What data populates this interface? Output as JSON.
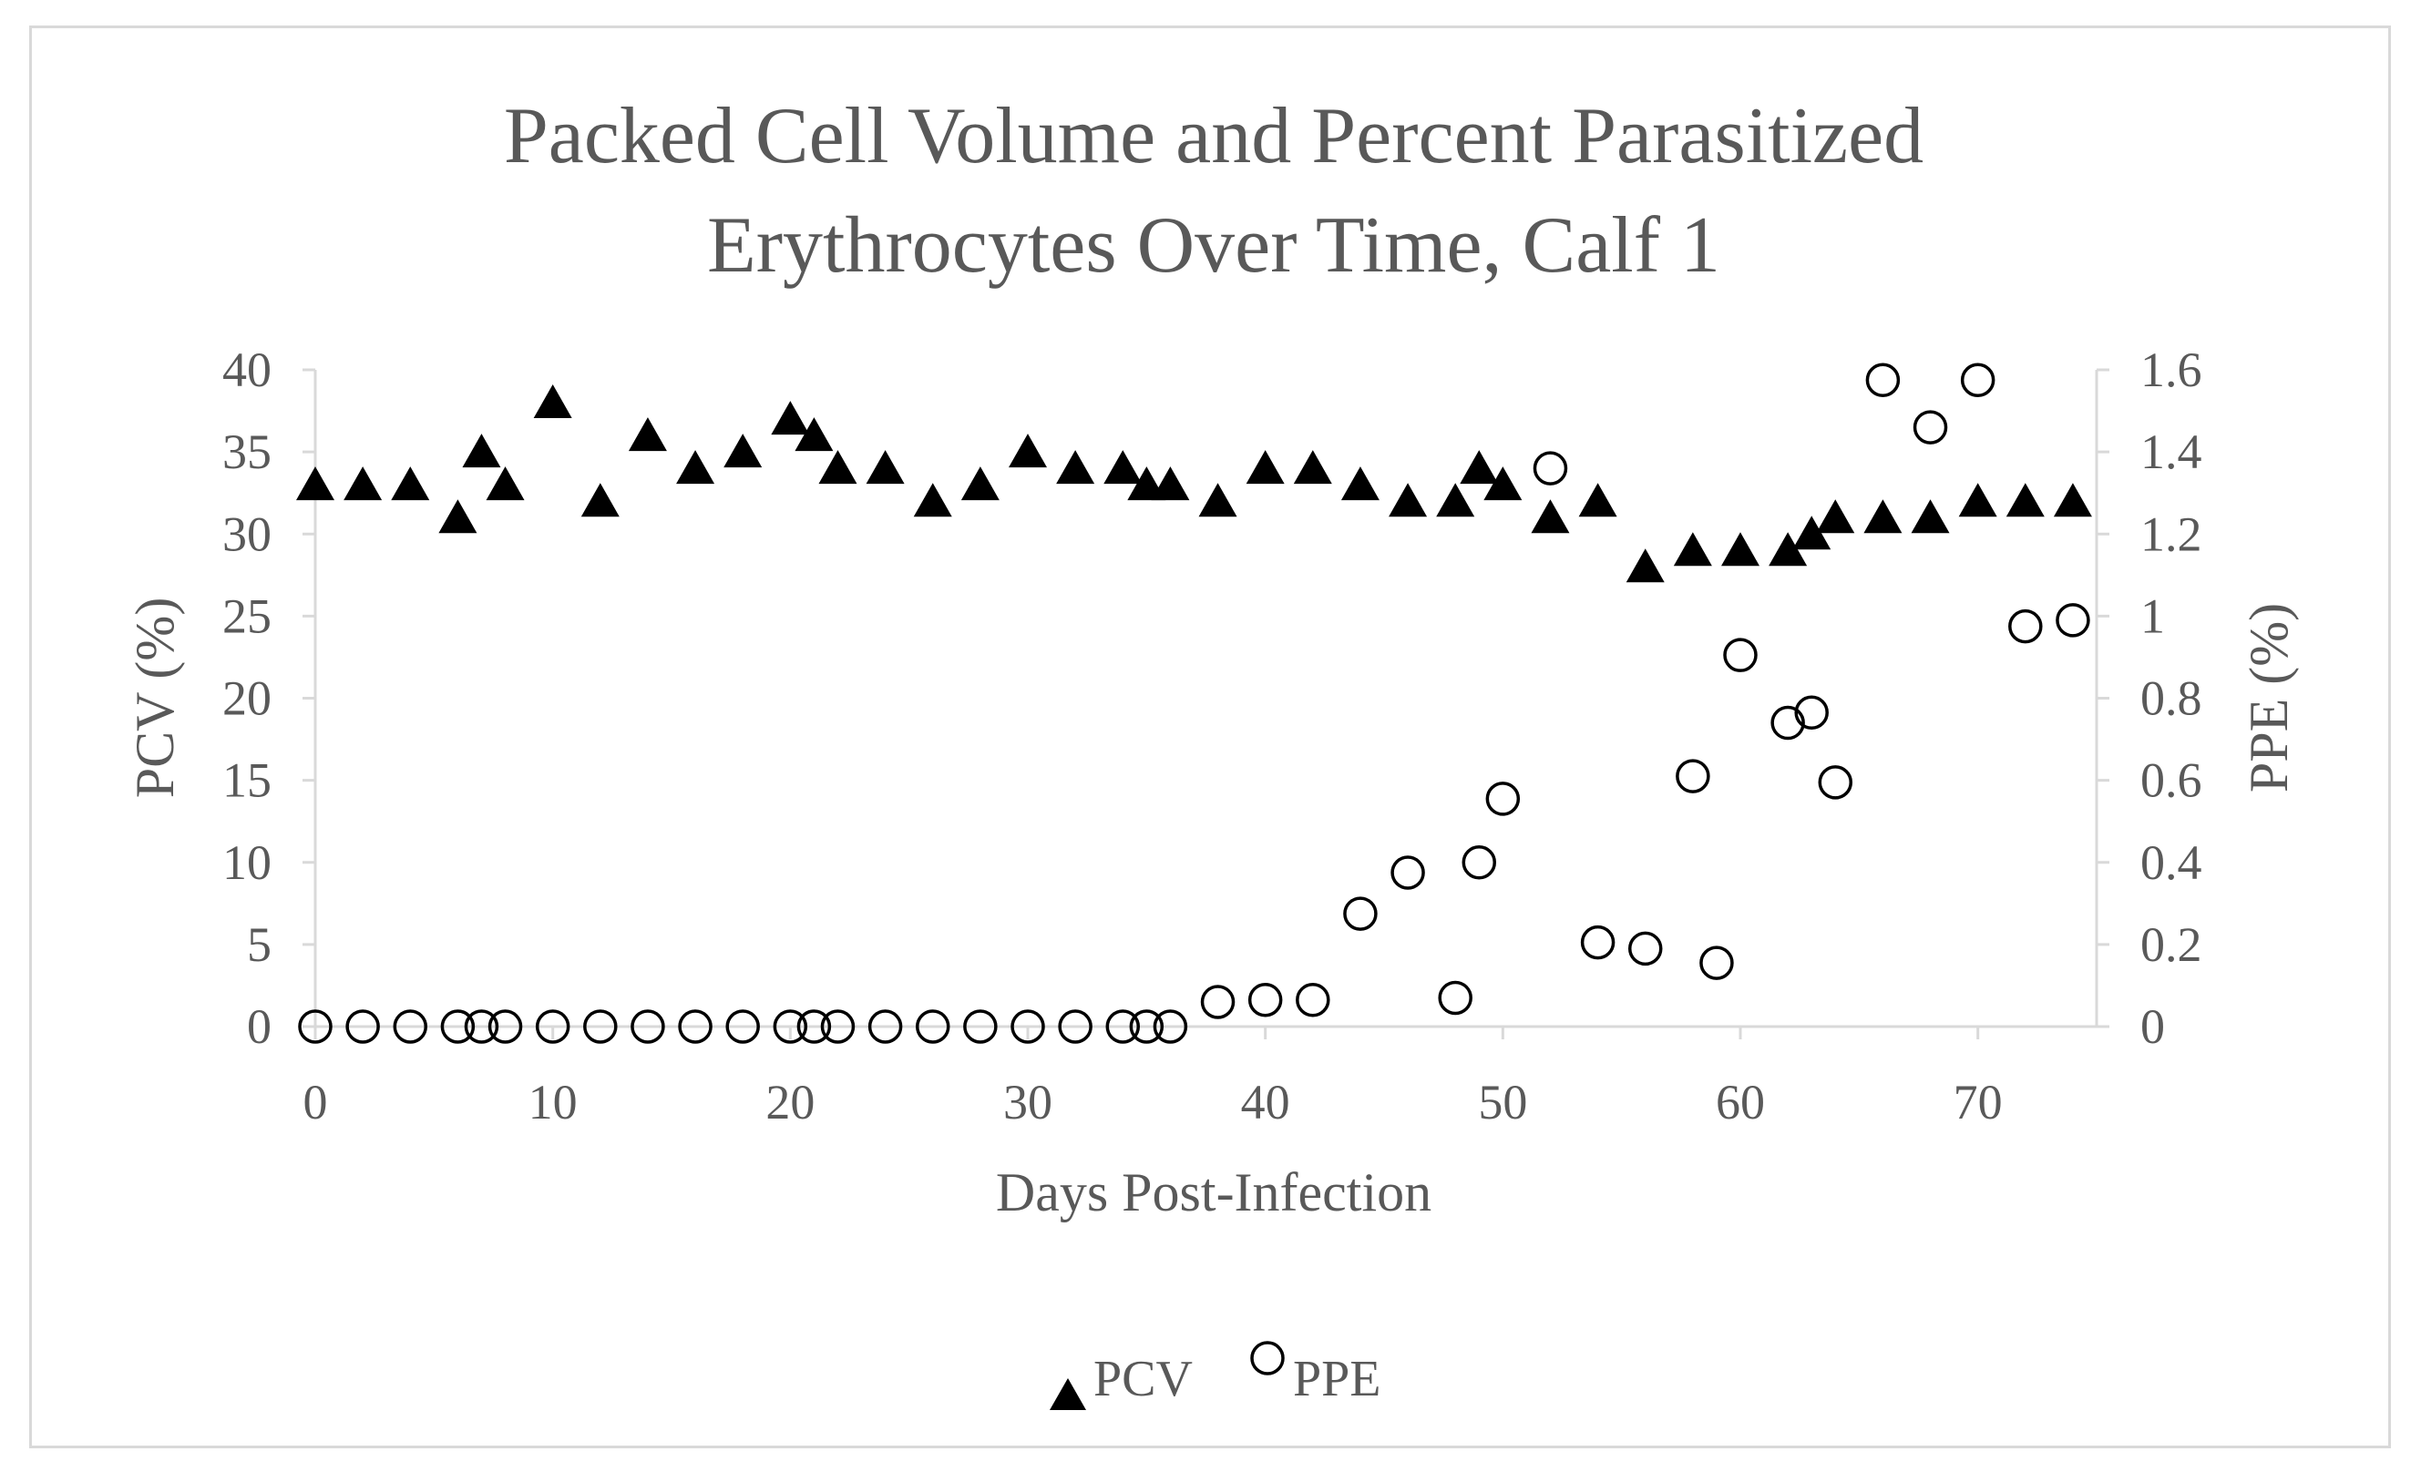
{
  "chart_data": {
    "type": "scatter",
    "title": [
      "Packed Cell Volume and Percent Parasitized",
      "Erythrocytes Over Time, Calf 1"
    ],
    "xlabel": "Days Post-Infection",
    "ylabel": "PCV (%)",
    "y2label": "PPE (%)",
    "xlim": [
      0,
      75
    ],
    "ylim": [
      0,
      40
    ],
    "y2lim": [
      0,
      1.6
    ],
    "xticks": [
      0,
      10,
      20,
      30,
      40,
      50,
      60,
      70
    ],
    "yticks": [
      0,
      5,
      10,
      15,
      20,
      25,
      30,
      35,
      40
    ],
    "y2ticks": [
      "0",
      "0.2",
      "0.4",
      "0.6",
      "0.8",
      "1",
      "1.2",
      "1.4",
      "1.6"
    ],
    "grid": false,
    "legend_position": "bottom",
    "series": [
      {
        "name": "PCV",
        "axis": "left",
        "marker": "filled-triangle",
        "color": "#000000",
        "points": [
          [
            0,
            33
          ],
          [
            2,
            33
          ],
          [
            4,
            33
          ],
          [
            6,
            31
          ],
          [
            7,
            35
          ],
          [
            8,
            33
          ],
          [
            10,
            38
          ],
          [
            12,
            32
          ],
          [
            14,
            36
          ],
          [
            16,
            34
          ],
          [
            18,
            35
          ],
          [
            20,
            37
          ],
          [
            21,
            36
          ],
          [
            22,
            34
          ],
          [
            24,
            34
          ],
          [
            26,
            32
          ],
          [
            28,
            33
          ],
          [
            30,
            35
          ],
          [
            32,
            34
          ],
          [
            34,
            34
          ],
          [
            35,
            33
          ],
          [
            36,
            33
          ],
          [
            38,
            32
          ],
          [
            40,
            34
          ],
          [
            42,
            34
          ],
          [
            44,
            33
          ],
          [
            46,
            32
          ],
          [
            48,
            32
          ],
          [
            49,
            34
          ],
          [
            50,
            33
          ],
          [
            52,
            31
          ],
          [
            54,
            32
          ],
          [
            56,
            28
          ],
          [
            58,
            29
          ],
          [
            60,
            29
          ],
          [
            62,
            29
          ],
          [
            63,
            30
          ],
          [
            64,
            31
          ],
          [
            66,
            31
          ],
          [
            68,
            31
          ],
          [
            70,
            32
          ],
          [
            72,
            32
          ],
          [
            74,
            32
          ]
        ]
      },
      {
        "name": "PPE",
        "axis": "right",
        "marker": "open-circle",
        "color": "#000000",
        "points": [
          [
            0,
            0
          ],
          [
            2,
            0
          ],
          [
            4,
            0
          ],
          [
            6,
            0
          ],
          [
            7,
            0
          ],
          [
            8,
            0
          ],
          [
            10,
            0
          ],
          [
            12,
            0
          ],
          [
            14,
            0
          ],
          [
            16,
            0
          ],
          [
            18,
            0
          ],
          [
            20,
            0
          ],
          [
            21,
            0
          ],
          [
            22,
            0
          ],
          [
            24,
            0
          ],
          [
            26,
            0
          ],
          [
            28,
            0
          ],
          [
            30,
            0
          ],
          [
            32,
            0
          ],
          [
            34,
            0
          ],
          [
            35,
            0
          ],
          [
            36,
            0
          ],
          [
            38,
            0.06
          ],
          [
            40,
            0.065
          ],
          [
            42,
            0.065
          ],
          [
            44,
            0.275
          ],
          [
            46,
            0.375
          ],
          [
            48,
            0.07
          ],
          [
            49,
            0.4
          ],
          [
            50,
            0.555
          ],
          [
            52,
            1.36
          ],
          [
            54,
            0.205
          ],
          [
            56,
            0.19
          ],
          [
            58,
            0.61
          ],
          [
            59,
            0.155
          ],
          [
            60,
            0.905
          ],
          [
            62,
            0.74
          ],
          [
            63,
            0.765
          ],
          [
            64,
            0.595
          ],
          [
            66,
            1.575
          ],
          [
            68,
            1.46
          ],
          [
            70,
            1.575
          ],
          [
            72,
            0.975
          ],
          [
            74,
            0.99
          ]
        ]
      }
    ]
  },
  "colors": {
    "text": "#595959",
    "axis_line": "#d9d9d9",
    "marker": "#000000"
  }
}
